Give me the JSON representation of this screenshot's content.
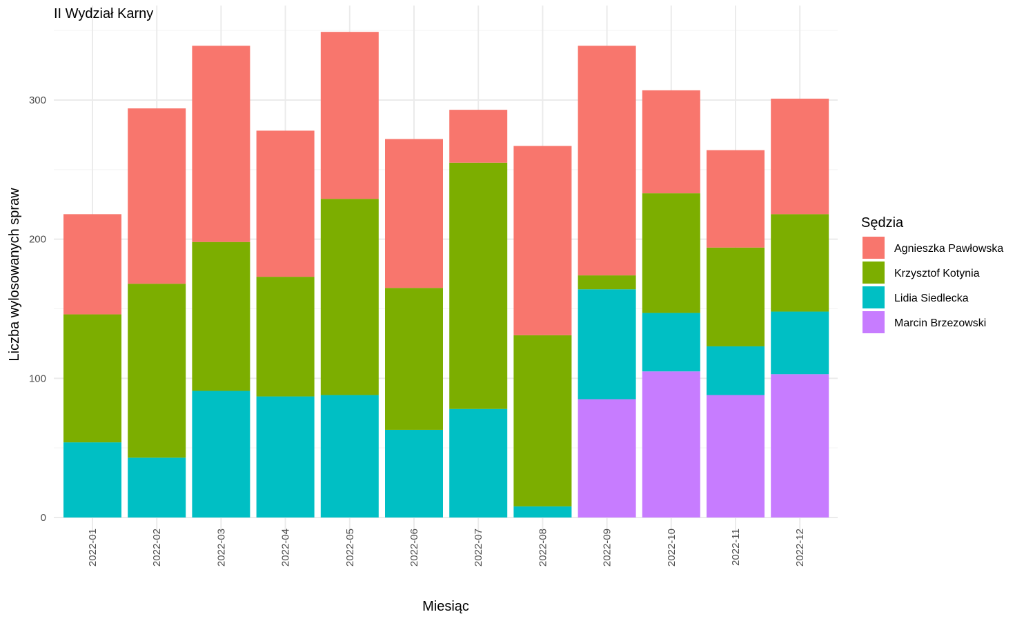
{
  "chart_data": {
    "type": "bar",
    "stacked": true,
    "title": "II Wydział Karny",
    "xlabel": "Miesiąc",
    "ylabel": "Liczba wylosowanych spraw",
    "ylim": [
      0,
      350
    ],
    "yticks": [
      0,
      100,
      200,
      300
    ],
    "grid": true,
    "legend_position": "right",
    "legend_title": "Sędzia",
    "categories": [
      "2022-01",
      "2022-02",
      "2022-03",
      "2022-04",
      "2022-05",
      "2022-06",
      "2022-07",
      "2022-08",
      "2022-09",
      "2022-10",
      "2022-11",
      "2022-12"
    ],
    "series": [
      {
        "name": "Marcin Brzezowski",
        "color": "#C77CFF",
        "values": [
          0,
          0,
          0,
          0,
          0,
          0,
          0,
          0,
          85,
          105,
          88,
          103
        ]
      },
      {
        "name": "Lidia Siedlecka",
        "color": "#00BFC4",
        "values": [
          54,
          43,
          91,
          87,
          88,
          63,
          78,
          8,
          79,
          42,
          35,
          45
        ]
      },
      {
        "name": "Krzysztof Kotynia",
        "color": "#7CAE00",
        "values": [
          92,
          125,
          107,
          86,
          141,
          102,
          177,
          123,
          10,
          86,
          71,
          70
        ]
      },
      {
        "name": "Agnieszka Pawłowska",
        "color": "#F8766D",
        "values": [
          72,
          126,
          141,
          105,
          120,
          107,
          38,
          136,
          165,
          74,
          70,
          83
        ]
      }
    ],
    "legend_order": [
      "Agnieszka Pawłowska",
      "Krzysztof Kotynia",
      "Lidia Siedlecka",
      "Marcin Brzezowski"
    ]
  }
}
